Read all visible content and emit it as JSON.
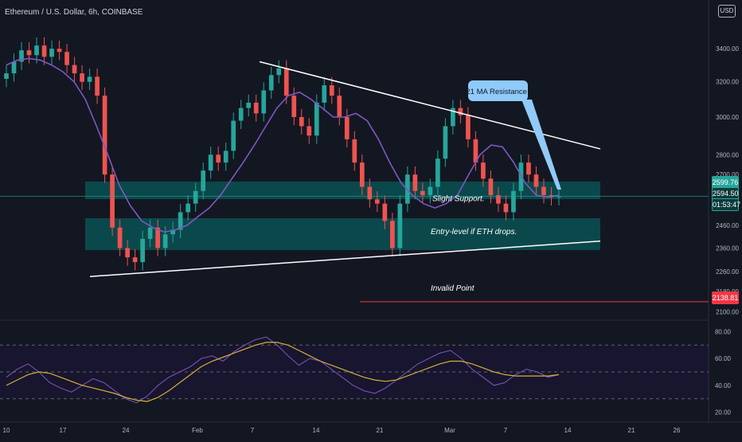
{
  "header": {
    "symbol_title": "Ethereum / U.S. Dollar, 6h, COINBASE",
    "currency_badge": "USD"
  },
  "annotations": {
    "callout": "21 MA Resistance.",
    "slight_support": "Slight Support.",
    "entry_level": "Entry-level if ETH drops.",
    "invalid_point": "Invalid Point"
  },
  "price_badges": {
    "ma_value": "2599.76",
    "last_price": "2594.50",
    "countdown": "01:53:47",
    "invalid_level": "2138.81"
  },
  "colors": {
    "background": "#131722",
    "up": "#26a69a",
    "down": "#ef5350",
    "ma": "#7e57c2",
    "rsi": "#7e57c2",
    "rsi_ma": "#d4b03a",
    "zone": "#0a5a5a",
    "callout": "#90caf9",
    "invalid_line": "#f23645"
  },
  "chart_data": {
    "type": "candlestick",
    "price_axis": {
      "ticks": [
        "3400.00",
        "3200.00",
        "3000.00",
        "2800.00",
        "2700.00",
        "2600.00",
        "2460.00",
        "2360.00",
        "2260.00",
        "2180.00",
        "2100.00"
      ],
      "scale": "log",
      "range": [
        2080,
        3600
      ]
    },
    "x_axis": {
      "tick_labels": [
        "10",
        "17",
        "24",
        "Feb",
        "7",
        "14",
        "21",
        "Mar",
        "7",
        "14",
        "21",
        "26"
      ]
    },
    "series": [
      {
        "kind": "price_close",
        "values": [
          3250,
          3320,
          3390,
          3360,
          3420,
          3350,
          3400,
          3380,
          3300,
          3250,
          3200,
          3230,
          3120,
          2700,
          2450,
          2360,
          2320,
          2300,
          2400,
          2450,
          2360,
          2420,
          2440,
          2520,
          2560,
          2620,
          2720,
          2800,
          2760,
          2820,
          2980,
          3050,
          3080,
          3020,
          3150,
          3240,
          3280,
          3120,
          3000,
          2950,
          2900,
          3080,
          3180,
          3120,
          3000,
          2880,
          2760,
          2640,
          2580,
          2560,
          2480,
          2360,
          2560,
          2700,
          2620,
          2600,
          2640,
          2780,
          2950,
          3050,
          3010,
          2880,
          2760,
          2680,
          2600,
          2560,
          2520,
          2620,
          2760,
          2700,
          2640,
          2600,
          2590,
          2594
        ]
      },
      {
        "kind": "moving_average_21",
        "values": [
          3300,
          3330,
          3340,
          3330,
          3300,
          3260,
          3200,
          3100,
          2950,
          2800,
          2650,
          2550,
          2480,
          2450,
          2430,
          2440,
          2460,
          2500,
          2540,
          2600,
          2680,
          2760,
          2850,
          2950,
          3050,
          3120,
          3140,
          3100,
          3050,
          3000,
          3000,
          3020,
          2980,
          2880,
          2760,
          2660,
          2600,
          2560,
          2540,
          2560,
          2600,
          2700,
          2800,
          2850,
          2840,
          2760,
          2660,
          2600,
          2590,
          2600
        ]
      },
      {
        "kind": "rsi",
        "values": [
          46,
          52,
          56,
          50,
          42,
          38,
          35,
          40,
          45,
          42,
          36,
          30,
          27,
          32,
          40,
          46,
          50,
          54,
          60,
          62,
          58,
          65,
          70,
          74,
          76,
          70,
          62,
          55,
          60,
          58,
          52,
          46,
          40,
          36,
          34,
          38,
          44,
          50,
          56,
          60,
          64,
          66,
          60,
          52,
          46,
          40,
          42,
          48,
          52,
          50,
          46,
          48
        ]
      },
      {
        "kind": "rsi_ma",
        "values": [
          40,
          44,
          48,
          50,
          49,
          46,
          43,
          40,
          38,
          36,
          34,
          31,
          29,
          28,
          31,
          36,
          42,
          48,
          54,
          58,
          61,
          64,
          67,
          70,
          72,
          72,
          70,
          66,
          62,
          58,
          55,
          52,
          49,
          46,
          44,
          43,
          44,
          47,
          50,
          53,
          56,
          58,
          58,
          56,
          53,
          50,
          48,
          47,
          47,
          47,
          47,
          48
        ]
      }
    ],
    "rsi_axis": {
      "ticks": [
        "80.00",
        "60.00",
        "40.00",
        "20.00"
      ]
    }
  }
}
